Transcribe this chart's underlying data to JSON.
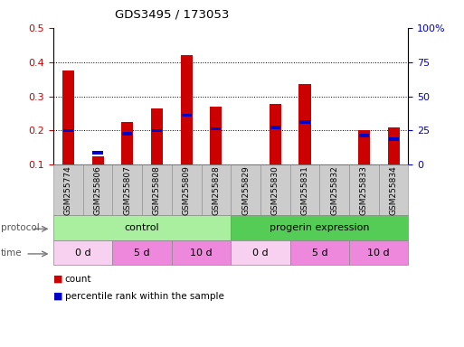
{
  "title": "GDS3495 / 173053",
  "samples": [
    "GSM255774",
    "GSM255806",
    "GSM255807",
    "GSM255808",
    "GSM255809",
    "GSM255828",
    "GSM255829",
    "GSM255830",
    "GSM255831",
    "GSM255832",
    "GSM255833",
    "GSM255834"
  ],
  "count_values": [
    0.375,
    0.125,
    0.225,
    0.265,
    0.42,
    0.27,
    0.0,
    0.278,
    0.335,
    0.0,
    0.2,
    0.21
  ],
  "percentile_values": [
    0.2,
    0.135,
    0.19,
    0.2,
    0.245,
    0.205,
    0.0,
    0.21,
    0.225,
    0.0,
    0.185,
    0.175
  ],
  "ylim_left": [
    0.1,
    0.5
  ],
  "ylim_right": [
    0,
    100
  ],
  "yticks_left": [
    0.1,
    0.2,
    0.3,
    0.4,
    0.5
  ],
  "yticks_right": [
    0,
    25,
    50,
    75,
    100
  ],
  "ytick_labels_right": [
    "0",
    "25",
    "50",
    "75",
    "100%"
  ],
  "bar_color": "#cc0000",
  "percentile_color": "#0000cc",
  "bar_width": 0.4,
  "protocol_groups": [
    {
      "label": "control",
      "start": 0,
      "end": 6,
      "color": "#aaeea0"
    },
    {
      "label": "progerin expression",
      "start": 6,
      "end": 12,
      "color": "#55cc55"
    }
  ],
  "time_groups": [
    {
      "label": "0 d",
      "start": 0,
      "end": 2,
      "color": "#f8d0f0"
    },
    {
      "label": "5 d",
      "start": 2,
      "end": 4,
      "color": "#ee88dd"
    },
    {
      "label": "10 d",
      "start": 4,
      "end": 6,
      "color": "#ee88dd"
    },
    {
      "label": "0 d",
      "start": 6,
      "end": 8,
      "color": "#f8d0f0"
    },
    {
      "label": "5 d",
      "start": 8,
      "end": 10,
      "color": "#ee88dd"
    },
    {
      "label": "10 d",
      "start": 10,
      "end": 12,
      "color": "#ee88dd"
    }
  ],
  "legend_count_label": "count",
  "legend_percentile_label": "percentile rank within the sample",
  "bg_color": "#ffffff",
  "axis_label_color_left": "#cc0000",
  "axis_label_color_right": "#0000cc",
  "xtick_bg_color": "#cccccc",
  "xtick_border_color": "#888888"
}
